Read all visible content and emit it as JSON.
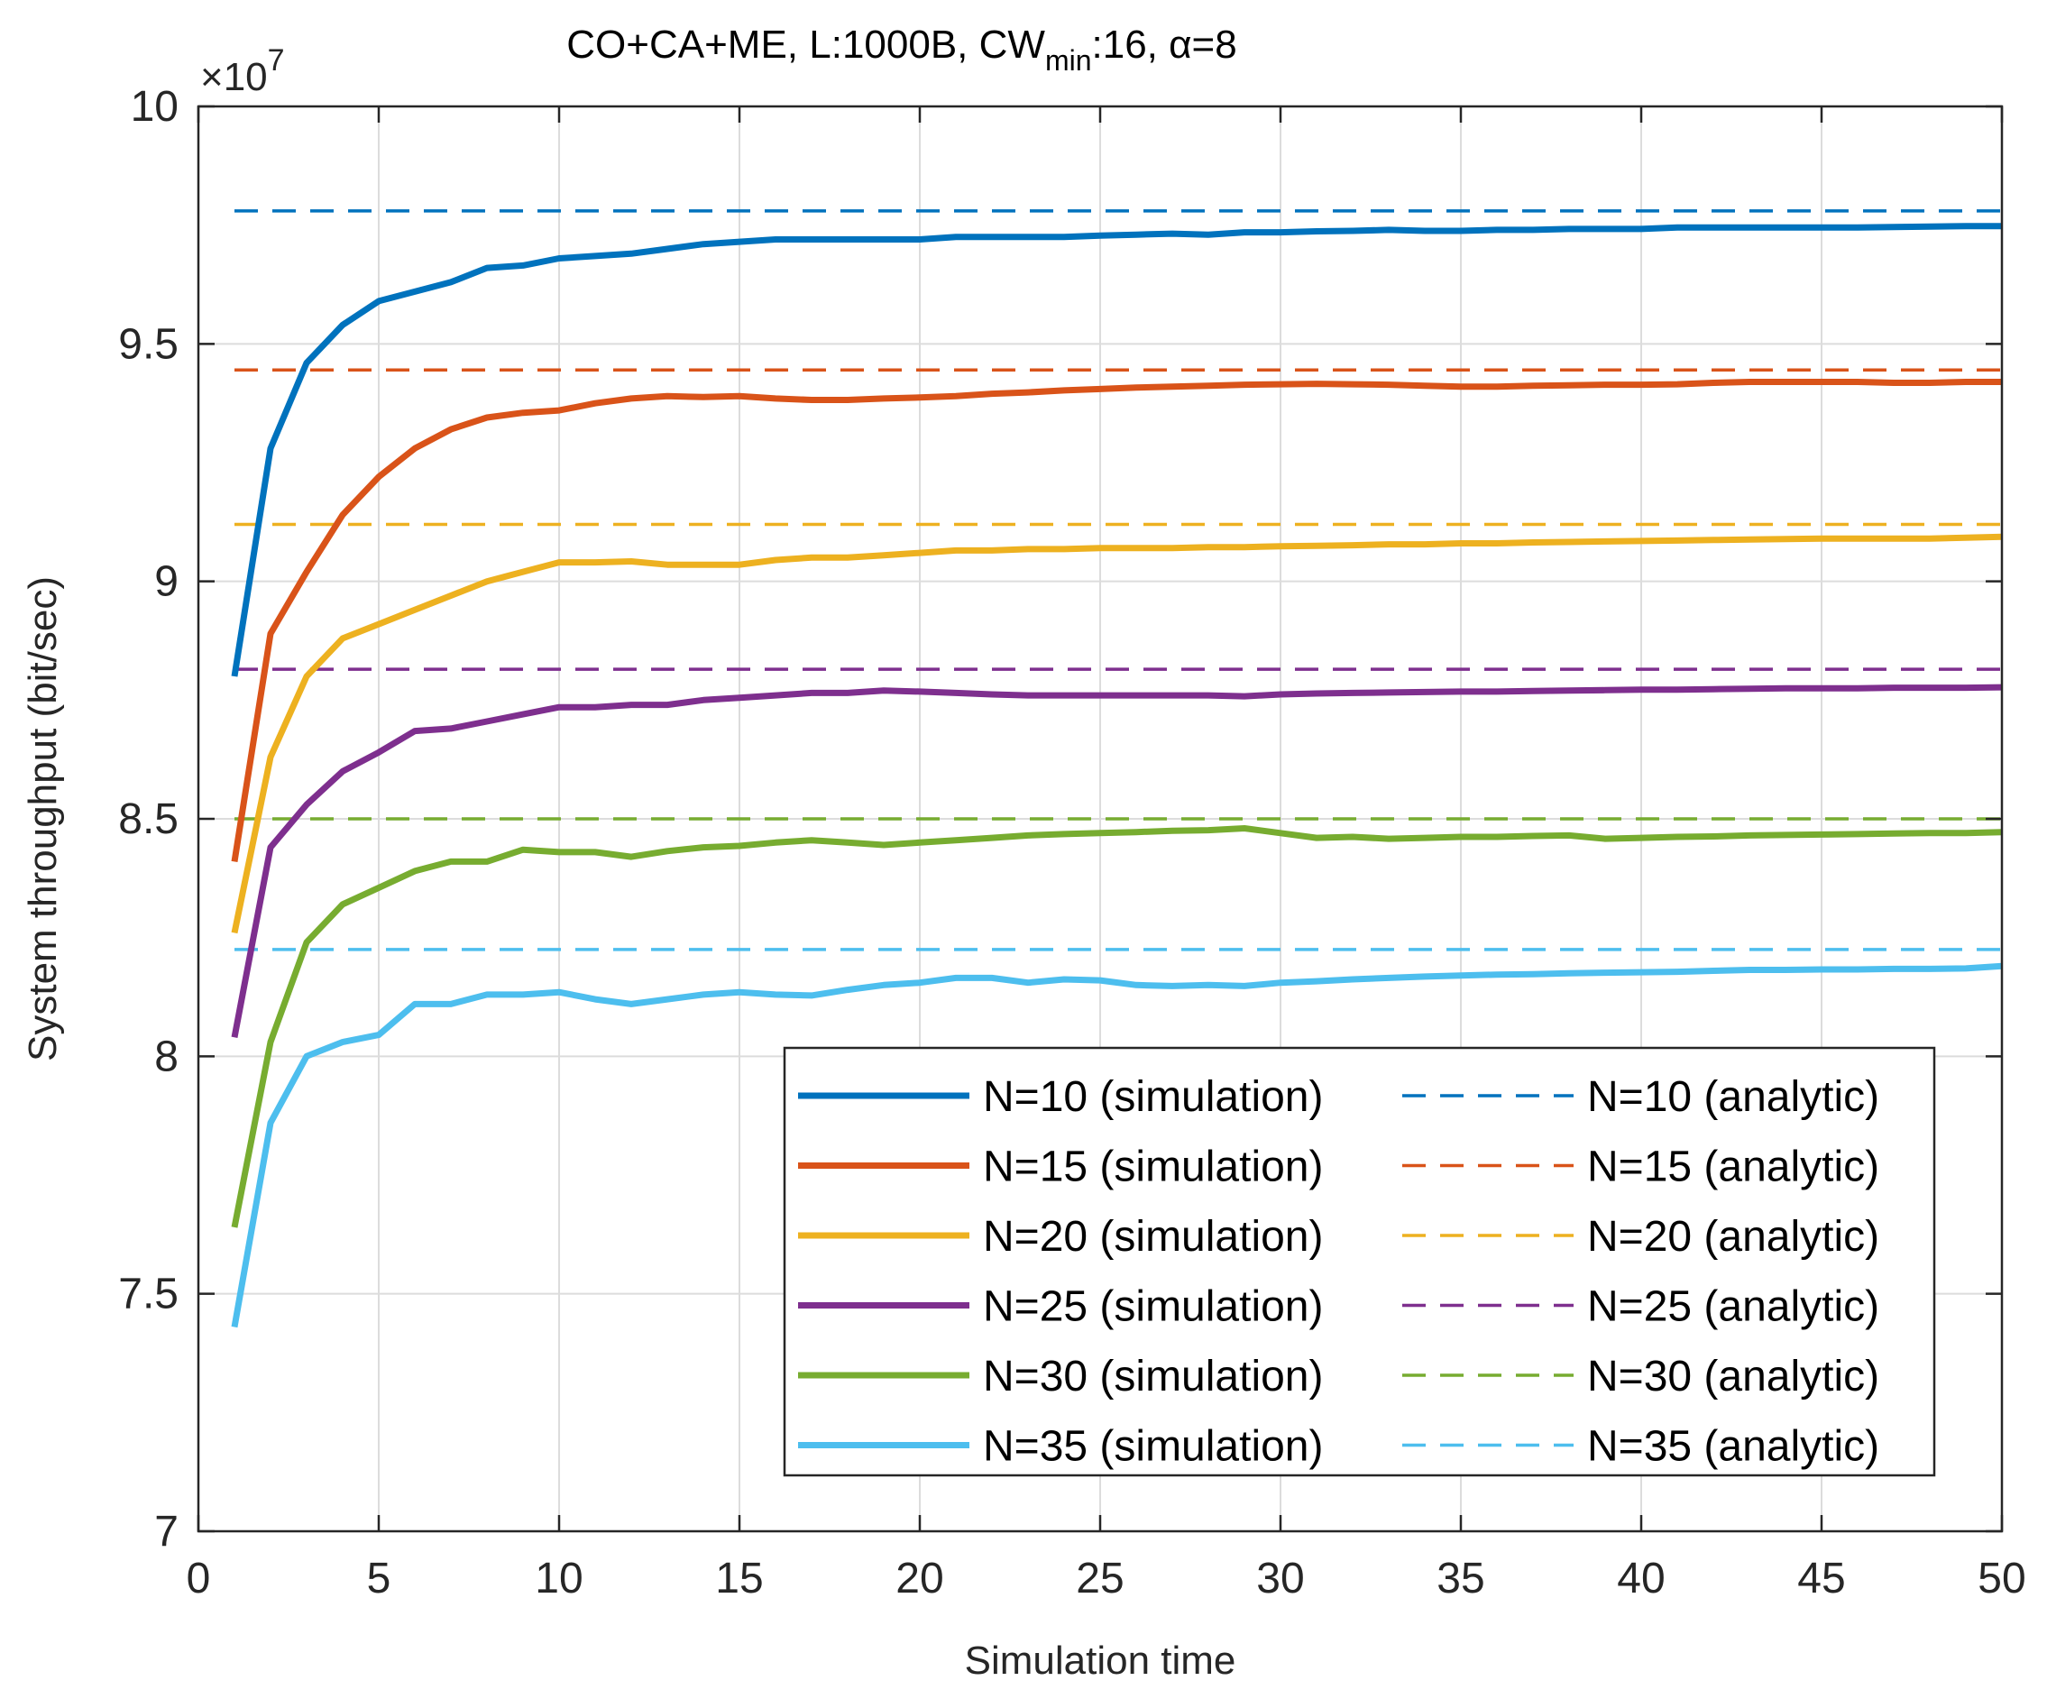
{
  "chart_data": {
    "type": "line",
    "title": "CO+CA+ME, L:1000B, CW",
    "title_sub": "min",
    "title_rest": ":16, α=8",
    "xlabel": "Simulation time",
    "ylabel": "System throughput (bit/sec)",
    "y_exponent_label": "×10",
    "y_exponent_power": "7",
    "xlim": [
      0,
      50
    ],
    "ylim": [
      7,
      10
    ],
    "xticks": [
      "0",
      "5",
      "10",
      "15",
      "20",
      "25",
      "30",
      "35",
      "40",
      "45",
      "50"
    ],
    "yticks": [
      "7",
      "7.5",
      "8",
      "8.5",
      "9",
      "9.5",
      "10"
    ],
    "grid": true,
    "legend_position": "bottom-right",
    "x": [
      1,
      2,
      3,
      4,
      5,
      6,
      7,
      8,
      9,
      10,
      11,
      12,
      13,
      14,
      15,
      16,
      17,
      18,
      19,
      20,
      21,
      22,
      23,
      24,
      25,
      26,
      27,
      28,
      29,
      30,
      31,
      32,
      33,
      34,
      35,
      36,
      37,
      38,
      39,
      40,
      41,
      42,
      43,
      44,
      45,
      46,
      47,
      48,
      49,
      50
    ],
    "series": [
      {
        "name": "N=10 (simulation)",
        "color": "#0072bd",
        "style": "solid",
        "values": [
          8.8,
          9.28,
          9.46,
          9.54,
          9.59,
          9.61,
          9.63,
          9.66,
          9.665,
          9.68,
          9.685,
          9.69,
          9.7,
          9.71,
          9.715,
          9.72,
          9.72,
          9.72,
          9.72,
          9.72,
          9.725,
          9.725,
          9.725,
          9.725,
          9.728,
          9.73,
          9.732,
          9.73,
          9.735,
          9.735,
          9.737,
          9.738,
          9.74,
          9.738,
          9.738,
          9.74,
          9.74,
          9.742,
          9.742,
          9.742,
          9.745,
          9.745,
          9.745,
          9.745,
          9.745,
          9.745,
          9.746,
          9.747,
          9.748,
          9.748
        ]
      },
      {
        "name": "N=15 (simulation)",
        "color": "#d95319",
        "style": "solid",
        "values": [
          8.41,
          8.89,
          9.02,
          9.14,
          9.22,
          9.28,
          9.32,
          9.345,
          9.355,
          9.36,
          9.375,
          9.385,
          9.39,
          9.388,
          9.39,
          9.385,
          9.382,
          9.382,
          9.385,
          9.387,
          9.39,
          9.395,
          9.398,
          9.402,
          9.405,
          9.408,
          9.41,
          9.412,
          9.414,
          9.415,
          9.416,
          9.415,
          9.414,
          9.412,
          9.41,
          9.41,
          9.412,
          9.413,
          9.414,
          9.414,
          9.415,
          9.418,
          9.42,
          9.42,
          9.42,
          9.42,
          9.418,
          9.418,
          9.42,
          9.42
        ]
      },
      {
        "name": "N=20 (simulation)",
        "color": "#edb120",
        "style": "solid",
        "values": [
          8.26,
          8.63,
          8.8,
          8.88,
          8.91,
          8.94,
          8.97,
          9.0,
          9.02,
          9.04,
          9.04,
          9.042,
          9.035,
          9.035,
          9.035,
          9.045,
          9.05,
          9.05,
          9.055,
          9.06,
          9.065,
          9.065,
          9.068,
          9.068,
          9.07,
          9.07,
          9.07,
          9.072,
          9.072,
          9.074,
          9.075,
          9.076,
          9.078,
          9.078,
          9.08,
          9.08,
          9.082,
          9.083,
          9.084,
          9.085,
          9.086,
          9.087,
          9.088,
          9.089,
          9.09,
          9.09,
          9.09,
          9.09,
          9.092,
          9.094
        ]
      },
      {
        "name": "N=25 (simulation)",
        "color": "#7e2f8e",
        "style": "solid",
        "values": [
          8.04,
          8.44,
          8.53,
          8.6,
          8.64,
          8.685,
          8.69,
          8.705,
          8.72,
          8.735,
          8.735,
          8.74,
          8.74,
          8.75,
          8.755,
          8.76,
          8.765,
          8.765,
          8.77,
          8.768,
          8.765,
          8.762,
          8.76,
          8.76,
          8.76,
          8.76,
          8.76,
          8.76,
          8.758,
          8.762,
          8.764,
          8.765,
          8.766,
          8.767,
          8.768,
          8.768,
          8.769,
          8.77,
          8.771,
          8.772,
          8.772,
          8.773,
          8.774,
          8.775,
          8.775,
          8.775,
          8.776,
          8.776,
          8.776,
          8.777
        ]
      },
      {
        "name": "N=30 (simulation)",
        "color": "#77ac30",
        "style": "solid",
        "values": [
          7.64,
          8.03,
          8.24,
          8.32,
          8.355,
          8.39,
          8.41,
          8.41,
          8.435,
          8.43,
          8.43,
          8.42,
          8.432,
          8.44,
          8.443,
          8.45,
          8.455,
          8.45,
          8.445,
          8.45,
          8.455,
          8.46,
          8.465,
          8.468,
          8.47,
          8.472,
          8.475,
          8.476,
          8.48,
          8.47,
          8.46,
          8.462,
          8.458,
          8.46,
          8.462,
          8.462,
          8.464,
          8.465,
          8.458,
          8.46,
          8.462,
          8.463,
          8.465,
          8.466,
          8.467,
          8.468,
          8.469,
          8.47,
          8.47,
          8.472
        ]
      },
      {
        "name": "N=35 (simulation)",
        "color": "#4dbeee",
        "style": "solid",
        "values": [
          7.43,
          7.86,
          8.0,
          8.03,
          8.045,
          8.11,
          8.11,
          8.13,
          8.13,
          8.135,
          8.12,
          8.11,
          8.12,
          8.13,
          8.135,
          8.13,
          8.128,
          8.14,
          8.15,
          8.155,
          8.165,
          8.165,
          8.155,
          8.162,
          8.16,
          8.15,
          8.148,
          8.15,
          8.148,
          8.155,
          8.158,
          8.162,
          8.165,
          8.168,
          8.17,
          8.172,
          8.173,
          8.175,
          8.176,
          8.177,
          8.178,
          8.18,
          8.182,
          8.182,
          8.183,
          8.183,
          8.184,
          8.184,
          8.185,
          8.19
        ]
      },
      {
        "name": "N=10 (analytic)",
        "color": "#0072bd",
        "style": "dashed",
        "constant": 9.78
      },
      {
        "name": "N=15 (analytic)",
        "color": "#d95319",
        "style": "dashed",
        "constant": 9.445
      },
      {
        "name": "N=20 (analytic)",
        "color": "#edb120",
        "style": "dashed",
        "constant": 9.12
      },
      {
        "name": "N=25 (analytic)",
        "color": "#7e2f8e",
        "style": "dashed",
        "constant": 8.815
      },
      {
        "name": "N=30 (analytic)",
        "color": "#77ac30",
        "style": "dashed",
        "constant": 8.5
      },
      {
        "name": "N=35 (analytic)",
        "color": "#4dbeee",
        "style": "dashed",
        "constant": 8.225
      }
    ]
  }
}
